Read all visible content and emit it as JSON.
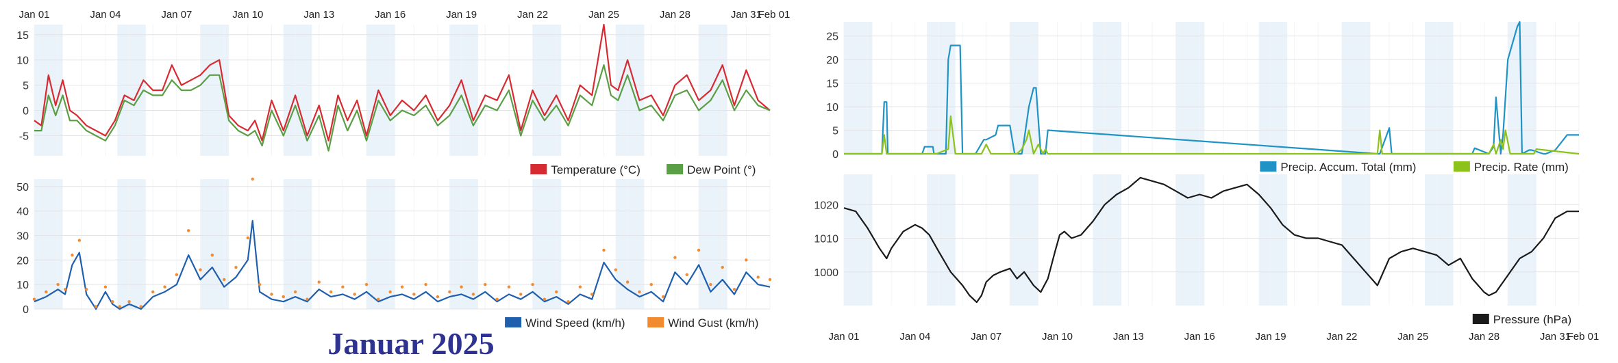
{
  "page_title": "Januar 2025",
  "colors": {
    "temperature": "#d62b32",
    "dew_point": "#5a9e45",
    "wind_speed": "#1f5fae",
    "wind_gust": "#f28a30",
    "precip_total": "#1f93c5",
    "precip_rate": "#8cc21a",
    "pressure": "#1a1a1a",
    "stripe": "#eaf2fa",
    "title": "#2e3391"
  },
  "date_ticks": [
    "Jan 01",
    "Jan 04",
    "Jan 07",
    "Jan 10",
    "Jan 13",
    "Jan 16",
    "Jan 19",
    "Jan 22",
    "Jan 25",
    "Jan 28",
    "Jan 31",
    "Feb 01"
  ],
  "chart_data": [
    {
      "id": "temp",
      "type": "line",
      "ylim": [
        -9,
        17
      ],
      "yticks": [
        -5,
        0,
        5,
        10,
        15
      ],
      "series": [
        {
          "name": "Temperature (°C)",
          "key": "temperature",
          "x": [
            0,
            0.3,
            0.6,
            0.9,
            1.2,
            1.5,
            1.8,
            2.2,
            2.6,
            3,
            3.4,
            3.8,
            4.2,
            4.6,
            5,
            5.4,
            5.8,
            6.2,
            6.6,
            7,
            7.4,
            7.8,
            8.2,
            8.6,
            9,
            9.3,
            9.6,
            10,
            10.5,
            11,
            11.5,
            12,
            12.4,
            12.8,
            13.2,
            13.6,
            14,
            14.5,
            15,
            15.5,
            16,
            16.5,
            17,
            17.5,
            18,
            18.5,
            19,
            19.5,
            20,
            20.5,
            21,
            21.5,
            22,
            22.5,
            23,
            23.5,
            24,
            24.3,
            24.6,
            25,
            25.5,
            26,
            26.5,
            27,
            27.5,
            28,
            28.5,
            29,
            29.5,
            30,
            30.5,
            31
          ],
          "y": [
            -2,
            -3,
            7,
            1,
            6,
            0,
            -1,
            -3,
            -4,
            -5,
            -2,
            3,
            2,
            6,
            4,
            4,
            9,
            5,
            6,
            7,
            9,
            10,
            -1,
            -3,
            -4,
            -2,
            -6,
            2,
            -4,
            3,
            -5,
            1,
            -6,
            3,
            -2,
            2,
            -5,
            4,
            -1,
            2,
            0,
            3,
            -2,
            1,
            6,
            -2,
            3,
            2,
            7,
            -4,
            4,
            -1,
            3,
            -2,
            5,
            3,
            17,
            5,
            4,
            10,
            2,
            3,
            -1,
            5,
            7,
            2,
            4,
            9,
            1,
            8,
            2,
            0
          ]
        },
        {
          "name": "Dew Point (°)",
          "key": "dew_point",
          "x": [
            0,
            0.3,
            0.6,
            0.9,
            1.2,
            1.5,
            1.8,
            2.2,
            2.6,
            3,
            3.4,
            3.8,
            4.2,
            4.6,
            5,
            5.4,
            5.8,
            6.2,
            6.6,
            7,
            7.4,
            7.8,
            8.2,
            8.6,
            9,
            9.3,
            9.6,
            10,
            10.5,
            11,
            11.5,
            12,
            12.4,
            12.8,
            13.2,
            13.6,
            14,
            14.5,
            15,
            15.5,
            16,
            16.5,
            17,
            17.5,
            18,
            18.5,
            19,
            19.5,
            20,
            20.5,
            21,
            21.5,
            22,
            22.5,
            23,
            23.5,
            24,
            24.3,
            24.6,
            25,
            25.5,
            26,
            26.5,
            27,
            27.5,
            28,
            28.5,
            29,
            29.5,
            30,
            30.5,
            31
          ],
          "y": [
            -4,
            -4,
            3,
            -1,
            3,
            -2,
            -2,
            -4,
            -5,
            -6,
            -3,
            2,
            1,
            4,
            3,
            3,
            6,
            4,
            4,
            5,
            7,
            7,
            -2,
            -4,
            -5,
            -4,
            -7,
            0,
            -5,
            1,
            -6,
            -1,
            -8,
            1,
            -4,
            0,
            -6,
            2,
            -2,
            0,
            -1,
            1,
            -3,
            -1,
            3,
            -3,
            1,
            0,
            4,
            -5,
            2,
            -2,
            1,
            -3,
            3,
            1,
            9,
            3,
            2,
            7,
            0,
            1,
            -2,
            3,
            4,
            0,
            2,
            6,
            0,
            4,
            1,
            0
          ]
        }
      ]
    },
    {
      "id": "wind",
      "type": "line",
      "ylim": [
        0,
        53
      ],
      "yticks": [
        0,
        10,
        20,
        30,
        40,
        50
      ],
      "series": [
        {
          "name": "Wind Speed (km/h)",
          "key": "wind_speed",
          "x": [
            0,
            0.5,
            1,
            1.3,
            1.6,
            1.9,
            2.2,
            2.6,
            3,
            3.3,
            3.6,
            4,
            4.5,
            5,
            5.5,
            6,
            6.5,
            7,
            7.5,
            8,
            8.5,
            9,
            9.2,
            9.5,
            10,
            10.5,
            11,
            11.5,
            12,
            12.5,
            13,
            13.5,
            14,
            14.5,
            15,
            15.5,
            16,
            16.5,
            17,
            17.5,
            18,
            18.5,
            19,
            19.5,
            20,
            20.5,
            21,
            21.5,
            22,
            22.5,
            23,
            23.5,
            24,
            24.5,
            25,
            25.5,
            26,
            26.5,
            27,
            27.5,
            28,
            28.5,
            29,
            29.5,
            30,
            30.5,
            31
          ],
          "y": [
            3,
            5,
            8,
            6,
            18,
            23,
            6,
            0,
            7,
            2,
            0,
            2,
            0,
            5,
            7,
            10,
            22,
            12,
            17,
            9,
            13,
            20,
            36,
            7,
            4,
            3,
            5,
            3,
            8,
            5,
            6,
            4,
            7,
            3,
            5,
            6,
            4,
            7,
            3,
            5,
            6,
            4,
            7,
            3,
            6,
            4,
            7,
            3,
            5,
            2,
            6,
            4,
            19,
            12,
            8,
            5,
            7,
            3,
            15,
            10,
            18,
            7,
            12,
            6,
            15,
            10,
            9
          ]
        },
        {
          "name": "Wind Gust (km/h)",
          "key": "wind_gust",
          "x": [
            0,
            0.5,
            1,
            1.3,
            1.6,
            1.9,
            2.2,
            2.6,
            3,
            3.3,
            3.6,
            4,
            4.5,
            5,
            5.5,
            6,
            6.5,
            7,
            7.5,
            8,
            8.5,
            9,
            9.2,
            9.5,
            10,
            10.5,
            11,
            11.5,
            12,
            12.5,
            13,
            13.5,
            14,
            14.5,
            15,
            15.5,
            16,
            16.5,
            17,
            17.5,
            18,
            18.5,
            19,
            19.5,
            20,
            20.5,
            21,
            21.5,
            22,
            22.5,
            23,
            23.5,
            24,
            24.5,
            25,
            25.5,
            26,
            26.5,
            27,
            27.5,
            28,
            28.5,
            29,
            29.5,
            30,
            30.5,
            31
          ],
          "y": [
            4,
            7,
            10,
            8,
            22,
            28,
            8,
            1,
            9,
            3,
            1,
            3,
            1,
            7,
            9,
            14,
            32,
            16,
            22,
            12,
            17,
            29,
            53,
            10,
            6,
            5,
            7,
            4,
            11,
            7,
            9,
            6,
            10,
            4,
            7,
            9,
            6,
            10,
            5,
            7,
            9,
            6,
            10,
            4,
            9,
            6,
            10,
            4,
            7,
            3,
            9,
            6,
            24,
            16,
            11,
            7,
            10,
            5,
            21,
            14,
            24,
            10,
            17,
            8,
            20,
            13,
            12
          ]
        }
      ]
    },
    {
      "id": "precip",
      "type": "line",
      "ylim": [
        0,
        28
      ],
      "yticks": [
        0,
        5,
        10,
        15,
        20,
        25
      ],
      "series": [
        {
          "name": "Precip. Accum. Total (mm)",
          "key": "precip_total",
          "x": [
            0,
            1.6,
            1.7,
            1.8,
            1.85,
            3.3,
            3.4,
            3.75,
            3.8,
            4.3,
            4.4,
            4.5,
            4.9,
            5,
            5.1,
            5.5,
            5.55,
            5.9,
            6,
            6.4,
            6.5,
            7,
            7.2,
            7.5,
            7.6,
            7.8,
            8,
            8.1,
            8.3,
            8.5,
            8.6,
            22.5,
            22.6,
            23,
            23.1,
            26.5,
            26.6,
            27.2,
            27.4,
            27.5,
            27.7,
            27.8,
            28,
            28.4,
            28.5,
            28.6,
            28.9,
            29,
            29.5,
            29.6,
            30,
            30.5,
            31
          ],
          "y": [
            0,
            0,
            11,
            11,
            0,
            0,
            1.5,
            1.5,
            0,
            0,
            20,
            23,
            23,
            0,
            0,
            0,
            0,
            3,
            3,
            4,
            6,
            6,
            0,
            0,
            3,
            10,
            14,
            14,
            0,
            0,
            5,
            0,
            0,
            5.5,
            0,
            0,
            1.2,
            0,
            1.5,
            12,
            0,
            4,
            20,
            27,
            28,
            0,
            0.8,
            0.8,
            0,
            0,
            0.8,
            4,
            4
          ]
        },
        {
          "name": "Precip. Rate (mm)",
          "key": "precip_rate",
          "x": [
            0,
            1.6,
            1.7,
            1.8,
            1.9,
            3.9,
            4.4,
            4.5,
            4.7,
            5.8,
            6,
            6.2,
            7.3,
            7.5,
            7.7,
            7.8,
            8,
            8.2,
            8.4,
            8.5,
            8.6,
            22.5,
            22.6,
            22.7,
            27.2,
            27.3,
            27.4,
            27.5,
            27.7,
            27.8,
            27.9,
            28.1,
            28.3,
            29.1,
            29.2,
            31
          ],
          "y": [
            0,
            0,
            4,
            0,
            0,
            0,
            1,
            8,
            0,
            0,
            2,
            0,
            0,
            1,
            3,
            5,
            0,
            2,
            0,
            1,
            0,
            0,
            5,
            0,
            0,
            1,
            2,
            0,
            3,
            1,
            5,
            0,
            0,
            0,
            1,
            0
          ]
        }
      ]
    },
    {
      "id": "pressure",
      "type": "line",
      "ylim": [
        990,
        1029
      ],
      "yticks": [
        1000,
        1010,
        1020
      ],
      "series": [
        {
          "name": "Pressure (hPa)",
          "key": "pressure",
          "x": [
            0,
            0.5,
            1,
            1.5,
            1.8,
            2,
            2.5,
            3,
            3.3,
            3.6,
            4,
            4.5,
            5,
            5.3,
            5.6,
            5.8,
            6,
            6.3,
            6.6,
            7,
            7.3,
            7.6,
            8,
            8.3,
            8.6,
            8.9,
            9.1,
            9.3,
            9.6,
            10,
            10.5,
            11,
            11.5,
            12,
            12.5,
            13,
            13.5,
            14,
            14.5,
            15,
            15.5,
            16,
            16.5,
            17,
            17.5,
            18,
            18.5,
            19,
            19.5,
            20,
            20.5,
            21,
            21.5,
            22,
            22.5,
            23,
            23.5,
            24,
            24.5,
            25,
            25.5,
            26,
            26.5,
            27,
            27.2,
            27.5,
            28,
            28.5,
            29,
            29.5,
            30,
            30.5,
            31
          ],
          "y": [
            1019,
            1018,
            1013,
            1007,
            1004,
            1007,
            1012,
            1014,
            1013,
            1011,
            1006,
            1000,
            996,
            993,
            991,
            993,
            997,
            999,
            1000,
            1001,
            998,
            1000,
            996,
            994,
            998,
            1006,
            1011,
            1012,
            1010,
            1011,
            1015,
            1020,
            1023,
            1025,
            1028,
            1027,
            1026,
            1024,
            1022,
            1023,
            1022,
            1024,
            1025,
            1026,
            1023,
            1019,
            1014,
            1011,
            1010,
            1010,
            1009,
            1008,
            1004,
            1000,
            996,
            1004,
            1006,
            1007,
            1006,
            1005,
            1002,
            1004,
            998,
            994,
            993,
            994,
            999,
            1004,
            1006,
            1010,
            1016,
            1018,
            1018
          ]
        }
      ]
    }
  ]
}
